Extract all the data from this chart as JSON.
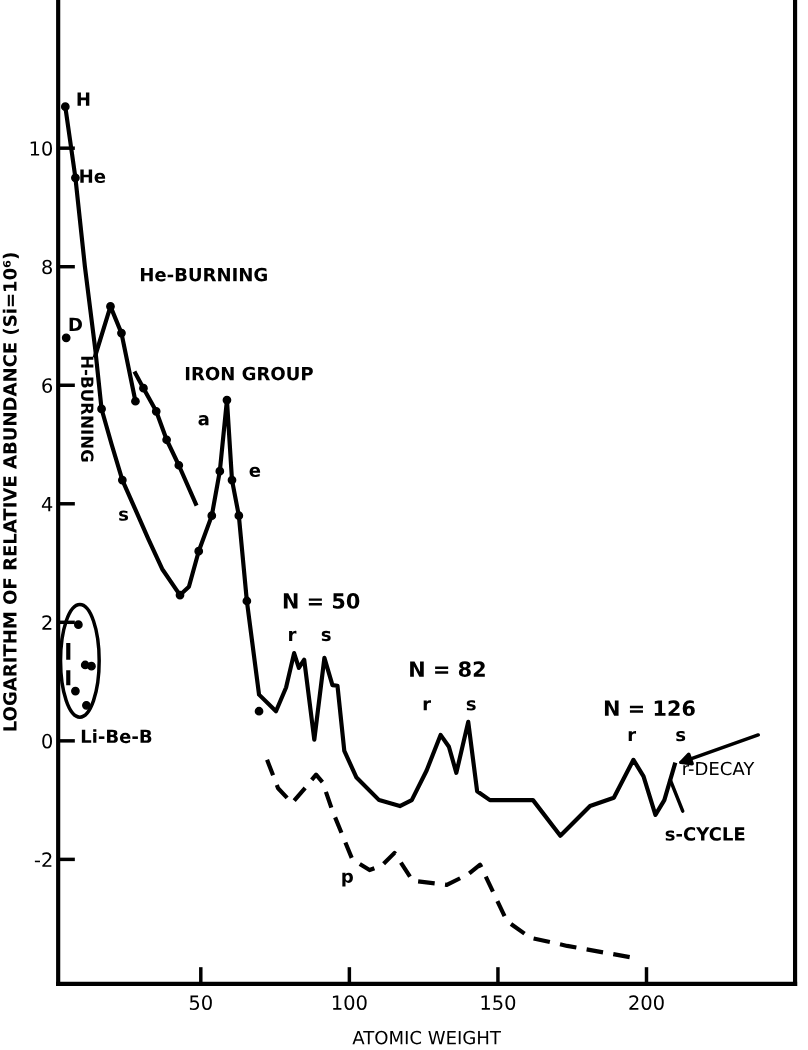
{
  "chart_data": {
    "type": "line",
    "xlabel": "ATOMIC WEIGHT",
    "ylabel": "LOGARITHM OF RELATIVE ABUNDANCE (Si=10⁶)",
    "xlim": [
      2,
      250
    ],
    "ylim": [
      -4.1,
      12.5
    ],
    "xticks": [
      50,
      100,
      150,
      200
    ],
    "yticks": [
      -2,
      0,
      2,
      4,
      6,
      8,
      10
    ],
    "grid": false,
    "legend": false,
    "series": [
      {
        "color": "#000000",
        "line_style": "solid",
        "x": [
          4.4,
          7.8,
          11,
          14.5,
          16.6,
          20,
          23.6,
          28,
          32.4,
          37,
          43,
          46,
          49.3,
          53.7,
          56.4,
          58.8,
          60.5,
          62.8,
          65.5,
          69.6,
          75.3,
          78.7,
          81.4,
          83,
          84.8,
          88.2,
          91.6,
          94.3,
          96,
          98.3,
          102.4,
          110,
          117,
          121,
          126,
          130.7,
          133.5,
          136,
          140,
          143,
          147.3,
          155,
          161.8,
          171,
          181,
          189,
          195.6,
          199,
          203,
          206,
          209.5
        ],
        "values": [
          10.7,
          9.5,
          8.0,
          6.6,
          5.6,
          5.0,
          4.4,
          3.9,
          3.4,
          2.9,
          2.46,
          2.6,
          3.2,
          3.8,
          4.55,
          5.75,
          4.4,
          3.8,
          2.36,
          0.78,
          0.5,
          0.9,
          1.48,
          1.23,
          1.37,
          0.02,
          1.4,
          0.94,
          0.93,
          -0.17,
          -0.62,
          -1.0,
          -1.1,
          -1.0,
          -0.5,
          0.1,
          -0.1,
          -0.54,
          0.32,
          -0.85,
          -1.0,
          -1.0,
          -1.0,
          -1.6,
          -1.1,
          -0.96,
          -0.32,
          -0.6,
          -1.25,
          -1.0,
          -0.4
        ]
      },
      {
        "type": "line",
        "color": "#000000",
        "line_style": "solid",
        "x": [
          14.5,
          19.6,
          23.3,
          28
        ],
        "values": [
          6.5,
          7.33,
          6.88,
          5.73
        ]
      },
      {
        "type": "line",
        "color": "#000000",
        "line_style": "solid",
        "x": [
          28,
          30.7,
          35,
          38.5,
          42.6,
          48.3
        ],
        "values": [
          6.2,
          5.95,
          5.56,
          5.08,
          4.65,
          4.0
        ]
      },
      {
        "type": "line",
        "color": "#000000",
        "line_style": "dashed",
        "x": [
          72.3,
          76,
          80.7,
          85,
          88.8,
          91,
          94.3,
          101,
          106.8,
          111,
          115.2,
          121.3,
          132.8,
          140,
          144,
          153,
          160.8,
          173.3,
          195.6
        ],
        "values": [
          -0.32,
          -0.8,
          -1.05,
          -0.8,
          -0.57,
          -0.7,
          -1.18,
          -2.0,
          -2.18,
          -2.1,
          -1.89,
          -2.36,
          -2.43,
          -2.25,
          -2.09,
          -3.04,
          -3.32,
          -3.46,
          -3.66
        ]
      },
      {
        "type": "line",
        "color": "#000000",
        "line_style": "dashed",
        "x": [
          5.4,
          5.4
        ],
        "values": [
          1.65,
          0.94
        ]
      },
      {
        "type": "scatter",
        "color": "#000000",
        "marker": "circle",
        "x": [
          4.4,
          7.8,
          4.7,
          16.6,
          23.6,
          19.6,
          23.3,
          28,
          30.7,
          35,
          38.5,
          42.6,
          43,
          49.3,
          53.7,
          56.4,
          58.8,
          60.5,
          62.8,
          65.5,
          69.6,
          8.8,
          11.1,
          13.2,
          7.8,
          11.5
        ],
        "values": [
          10.7,
          9.5,
          6.8,
          5.6,
          4.4,
          7.33,
          6.88,
          5.73,
          5.95,
          5.56,
          5.08,
          4.65,
          2.46,
          3.2,
          3.8,
          4.55,
          5.75,
          4.4,
          3.8,
          2.36,
          0.5,
          1.96,
          1.28,
          1.26,
          0.84,
          0.6
        ]
      }
    ],
    "annotations": [
      "H",
      "He",
      "D",
      "He-BURNING",
      "H-BURNING",
      "IRON GROUP",
      "a",
      "e",
      "s",
      "Li-Be-B",
      "N = 50",
      "r",
      "s",
      "N = 82",
      "r",
      "s",
      "N = 126",
      "r",
      "s",
      {
        "text": "r-DECAY",
        "x": 209.5,
        "y": -0.4
      },
      {
        "text": "s-CYCLE",
        "x": 208,
        "y": -0.66
      },
      "p"
    ]
  }
}
